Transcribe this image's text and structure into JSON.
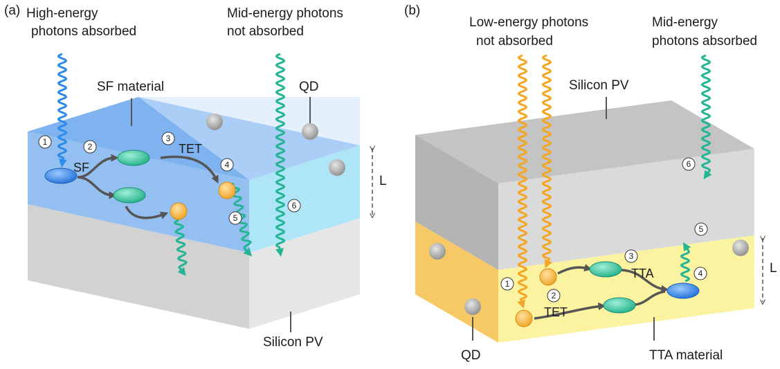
{
  "panels": [
    {
      "label": "(a)",
      "incoming_left": [
        "High-energy",
        "photons absorbed"
      ],
      "incoming_right": [
        "Mid-energy photons",
        "not absorbed"
      ],
      "material": "SF material",
      "qd": "QD",
      "processes": [
        "SF",
        "TET"
      ],
      "thickness": "L",
      "substrate": "Silicon PV",
      "steps": [
        1,
        2,
        3,
        4,
        5,
        6
      ]
    },
    {
      "label": "(b)",
      "incoming_left": [
        "Low-energy photons",
        "not absorbed"
      ],
      "incoming_right": [
        "Mid-energy",
        "photons absorbed"
      ],
      "material": "TTA material",
      "qd": "QD",
      "processes": [
        "TET",
        "TTA"
      ],
      "thickness": "L",
      "substrate": "Silicon PV",
      "steps": [
        1,
        2,
        3,
        4,
        5,
        6
      ]
    }
  ]
}
